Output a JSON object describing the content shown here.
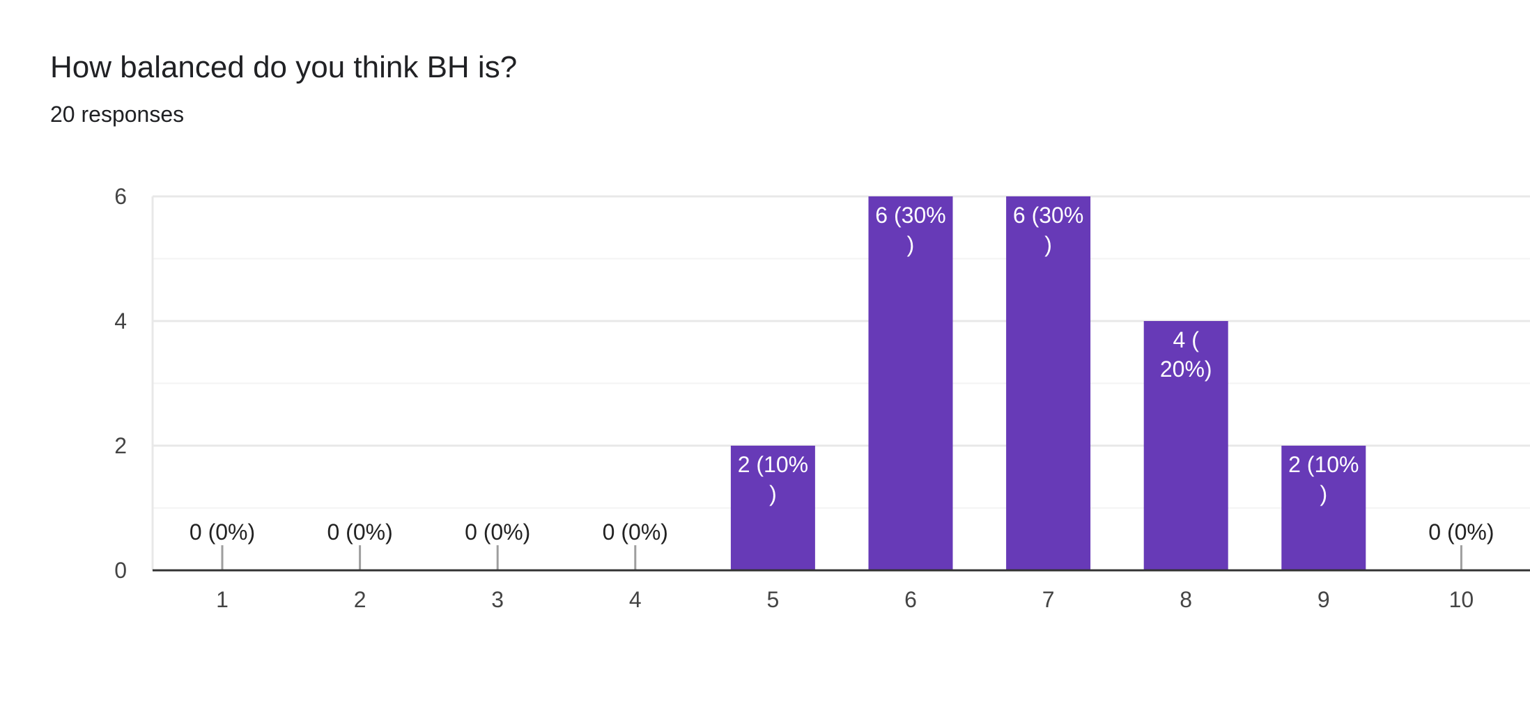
{
  "header": {
    "title": "How balanced do you think BH is?",
    "responses": "20 responses"
  },
  "colors": {
    "bar": "#673ab7",
    "grid_major": "#e8e8e8",
    "grid_minor": "#f3f3f3",
    "axis": "#333333",
    "zero_stem": "#9e9e9e"
  },
  "chart_data": {
    "type": "bar",
    "categories": [
      "1",
      "2",
      "3",
      "4",
      "5",
      "6",
      "7",
      "8",
      "9",
      "10"
    ],
    "values": [
      0,
      0,
      0,
      0,
      2,
      6,
      6,
      4,
      2,
      0
    ],
    "data_labels": [
      [
        "0 (0%)"
      ],
      [
        "0 (0%)"
      ],
      [
        "0 (0%)"
      ],
      [
        "0 (0%)"
      ],
      [
        "2 (10%",
        ")"
      ],
      [
        "6 (30%",
        ")"
      ],
      [
        "6 (30%",
        ")"
      ],
      [
        "4 (",
        "20%)"
      ],
      [
        "2 (10%",
        ")"
      ],
      [
        "0 (0%)"
      ]
    ],
    "y_ticks": [
      "0",
      "2",
      "4",
      "6"
    ],
    "ylim": [
      0,
      6
    ],
    "xlabel": "",
    "ylabel": "",
    "grid": true,
    "legend": "none"
  }
}
